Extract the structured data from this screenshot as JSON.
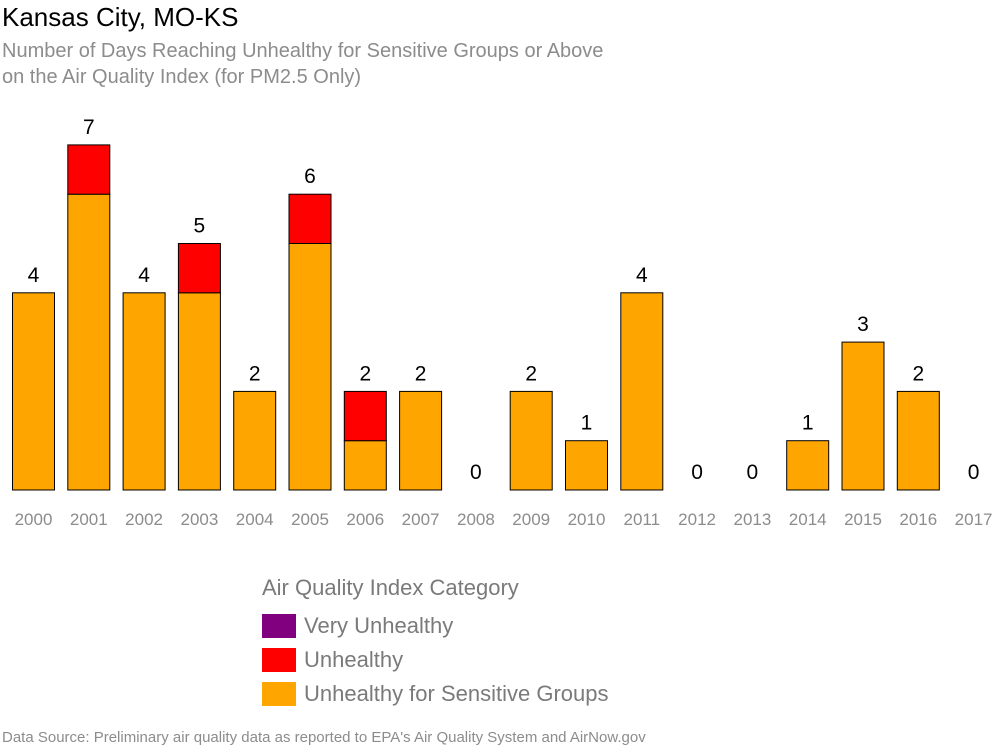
{
  "chart_data": {
    "type": "bar",
    "stacked": true,
    "title": "Kansas City, MO-KS",
    "subtitle": [
      "Number of Days Reaching Unhealthy for Sensitive Groups or Above",
      "on the Air Quality Index (for PM2.5 Only)"
    ],
    "categories": [
      "2000",
      "2001",
      "2002",
      "2003",
      "2004",
      "2005",
      "2006",
      "2007",
      "2008",
      "2009",
      "2010",
      "2011",
      "2012",
      "2013",
      "2014",
      "2015",
      "2016",
      "2017"
    ],
    "series": [
      {
        "name": "Unhealthy for Sensitive Groups",
        "color": "#ffa500",
        "values": [
          4,
          6,
          4,
          4,
          2,
          5,
          1,
          2,
          0,
          2,
          1,
          4,
          0,
          0,
          1,
          3,
          2,
          0
        ]
      },
      {
        "name": "Unhealthy",
        "color": "#ff0000",
        "values": [
          0,
          1,
          0,
          1,
          0,
          1,
          1,
          0,
          0,
          0,
          0,
          0,
          0,
          0,
          0,
          0,
          0,
          0
        ]
      },
      {
        "name": "Very Unhealthy",
        "color": "#800080",
        "values": [
          0,
          0,
          0,
          0,
          0,
          0,
          0,
          0,
          0,
          0,
          0,
          0,
          0,
          0,
          0,
          0,
          0,
          0
        ]
      }
    ],
    "totals": [
      4,
      7,
      4,
      5,
      2,
      6,
      2,
      2,
      0,
      2,
      1,
      4,
      0,
      0,
      1,
      3,
      2,
      0
    ],
    "ylim": [
      0,
      7
    ],
    "grid": false,
    "legend": {
      "title": "Air Quality Index Category",
      "placement": "bottom-center",
      "items": [
        {
          "label": "Very Unhealthy",
          "color": "#800080"
        },
        {
          "label": "Unhealthy",
          "color": "#ff0000"
        },
        {
          "label": "Unhealthy for Sensitive Groups",
          "color": "#ffa500"
        }
      ]
    },
    "source": "Data Source: Preliminary air quality data as reported to EPA's Air Quality System and AirNow.gov"
  }
}
